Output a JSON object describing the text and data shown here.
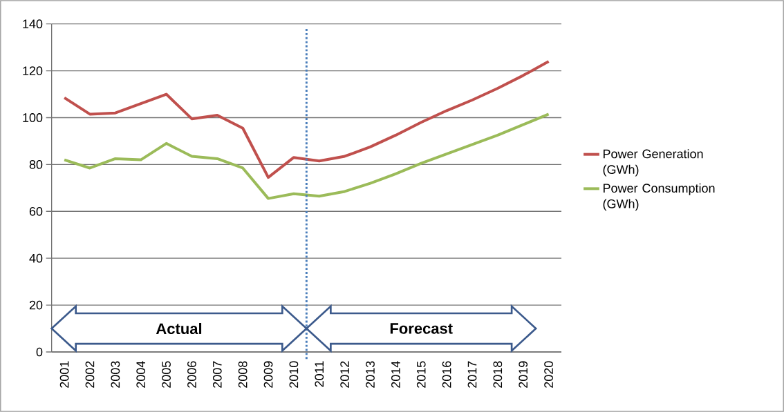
{
  "chart_data": {
    "type": "line",
    "x": [
      2001,
      2002,
      2003,
      2004,
      2005,
      2006,
      2007,
      2008,
      2009,
      2010,
      2011,
      2012,
      2013,
      2014,
      2015,
      2016,
      2017,
      2018,
      2019,
      2020
    ],
    "series": [
      {
        "name": "Power Generation (GWh)",
        "color": "#c0504d",
        "values": [
          108.5,
          101.5,
          102,
          106,
          110,
          99.5,
          101,
          95.5,
          74.5,
          83,
          81.5,
          83.5,
          87.5,
          92.5,
          98,
          103,
          107.5,
          112.5,
          118,
          124
        ]
      },
      {
        "name": "Power Consumption (GWh)",
        "color": "#9bbb59",
        "values": [
          82,
          78.5,
          82.5,
          82,
          89,
          83.5,
          82.5,
          78.5,
          65.5,
          67.5,
          66.5,
          68.5,
          72,
          76,
          80.5,
          84.5,
          88.5,
          92.5,
          97,
          101.5
        ]
      }
    ],
    "xlim": [
      2000.5,
      2020.5
    ],
    "xticks": [
      2001,
      2002,
      2003,
      2004,
      2005,
      2006,
      2007,
      2008,
      2009,
      2010,
      2011,
      2012,
      2013,
      2014,
      2015,
      2016,
      2017,
      2018,
      2019,
      2020
    ],
    "ylim": [
      0,
      140
    ],
    "yticks": [
      0,
      20,
      40,
      60,
      80,
      100,
      120,
      140
    ],
    "grid": "y",
    "legend": "right",
    "marker": "none",
    "line_style": "solid",
    "ref_lines": [
      {
        "axis": "x",
        "value": 2010.5,
        "color": "#4a7ebb",
        "line_style": "dotted"
      }
    ],
    "annotations": [
      "Actual",
      "Forecast"
    ]
  }
}
